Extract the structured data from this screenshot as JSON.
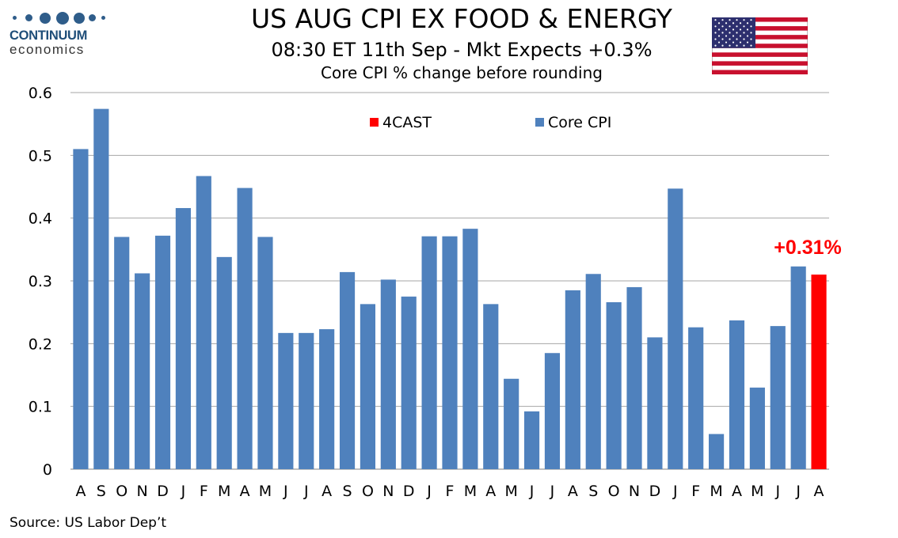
{
  "logo": {
    "name": "CONTINUUM",
    "sub": "economics"
  },
  "title": "US AUG CPI EX FOOD & ENERGY",
  "subtitle": "08:30 ET 11th Sep - Mkt Expects +0.3%",
  "subtitle2": "Core CPI % change before rounding",
  "source": "Source: US Labor Dep’t",
  "colors": {
    "core": "#4f81bd",
    "forecast": "#ff0000",
    "grid": "#a6a6a6"
  },
  "chart_data": {
    "type": "bar",
    "title": "US AUG CPI EX FOOD & ENERGY",
    "xlabel": "",
    "ylabel": "",
    "ylim": [
      0,
      0.6
    ],
    "yticks": [
      0,
      0.1,
      0.2,
      0.3,
      0.4,
      0.5,
      0.6
    ],
    "ytick_labels": [
      "0",
      "0.1",
      "0.2",
      "0.3",
      "0.4",
      "0.5",
      "0.6"
    ],
    "grid": true,
    "legend_position": "top",
    "categories": [
      "A",
      "S",
      "O",
      "N",
      "D",
      "J",
      "F",
      "M",
      "A",
      "M",
      "J",
      "J",
      "A",
      "S",
      "O",
      "N",
      "D",
      "J",
      "F",
      "M",
      "A",
      "M",
      "J",
      "J",
      "A",
      "S",
      "O",
      "N",
      "D",
      "J",
      "F",
      "M",
      "A",
      "M",
      "J",
      "J",
      "A"
    ],
    "series": [
      {
        "name": "Core CPI",
        "color": "#4f81bd",
        "values": [
          0.51,
          0.574,
          0.37,
          0.312,
          0.372,
          0.416,
          0.467,
          0.338,
          0.448,
          0.37,
          0.217,
          0.217,
          0.223,
          0.314,
          0.263,
          0.302,
          0.275,
          0.371,
          0.371,
          0.383,
          0.263,
          0.144,
          0.092,
          0.185,
          0.285,
          0.311,
          0.266,
          0.29,
          0.21,
          0.447,
          0.226,
          0.056,
          0.237,
          0.13,
          0.228,
          0.323,
          null
        ]
      },
      {
        "name": "4CAST",
        "color": "#ff0000",
        "values": [
          null,
          null,
          null,
          null,
          null,
          null,
          null,
          null,
          null,
          null,
          null,
          null,
          null,
          null,
          null,
          null,
          null,
          null,
          null,
          null,
          null,
          null,
          null,
          null,
          null,
          null,
          null,
          null,
          null,
          null,
          null,
          null,
          null,
          null,
          null,
          null,
          0.31
        ]
      }
    ],
    "annotations": [
      {
        "text": "+0.31%",
        "category_index": 36,
        "color": "#ff0000"
      }
    ]
  }
}
